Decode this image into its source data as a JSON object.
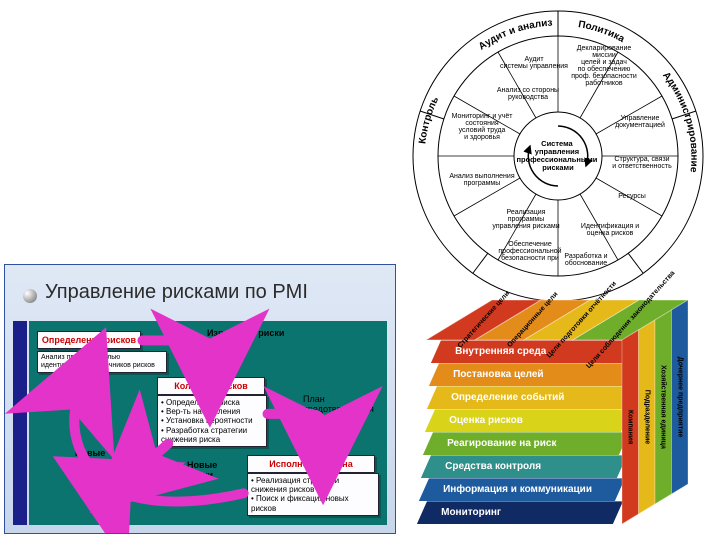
{
  "wheel": {
    "center": "Система управления профессиональными рисками",
    "sectors_outer": [
      "Аудит и анализ",
      "Политика",
      "Администрирование",
      "Контроль",
      "Контроль"
    ],
    "cells": [
      "Аудит системы управления",
      "Анализ со стороны руководства",
      "Мониторинг и учёт состояния условий труда и здоровья",
      "Анализ выполнения программы",
      "Декларирование миссии, целей и задач по обеспечению профессиональной безопасности работников",
      "Управление документацией",
      "Структура, связи и ответственность",
      "Ресурсы",
      "Идентификация и оценка рисков",
      "Разработка и обоснование",
      "Реализация программы управления рисками",
      "Обеспечение профессиональной безопасности при"
    ],
    "colors": {
      "stroke": "#000000",
      "fill": "#ffffff"
    }
  },
  "pmi": {
    "title": "Управление рисками по PMI",
    "bg_outer": "#d3e0f0",
    "bg_inner": "#0b746f",
    "accent": "#1a1f8a",
    "arrow_color": "#e333c8",
    "boxes": {
      "b1": {
        "title": "Определение рисков"
      },
      "b2": {
        "text": "Анализ проекта с целью идентификации источников рисков"
      },
      "b3": {
        "title": "Кол./Кач. рисков",
        "items": [
          "Определение риска",
          "Вер-ть наступления",
          "Установка вероятности",
          "Разработка стратегии снижения риска"
        ]
      },
      "b4": {
        "title": "Исполнение плана",
        "items": [
          "Реализация стратегии снижения рисков",
          "Поиск и фиксация новых рисков"
        ]
      }
    },
    "labels": {
      "known": "Известные риски",
      "new1": "Новые риски",
      "new2": "Новые риски",
      "plan": "План предотвращения риска"
    }
  },
  "cube": {
    "layers": [
      {
        "label": "Внутренняя среда",
        "color": "#d13a1f"
      },
      {
        "label": "Постановка целей",
        "color": "#e38c1a"
      },
      {
        "label": "Определение событий",
        "color": "#e5b91a"
      },
      {
        "label": "Оценка рисков",
        "color": "#d9d31a"
      },
      {
        "label": "Реагирование на риск",
        "color": "#6fae2a"
      },
      {
        "label": "Средства контроля",
        "color": "#2f8f8a"
      },
      {
        "label": "Информация и коммуникации",
        "color": "#1e5a9e"
      },
      {
        "label": "Мониторинг",
        "color": "#102a63"
      }
    ],
    "top_labels": [
      "Стратегические цели",
      "Операционные цели",
      "Цели подготовки отчётности",
      "Цели соблюдения законодательства"
    ],
    "top_colors": [
      "#d13a1f",
      "#e38c1a",
      "#e5b91a",
      "#6fae2a"
    ],
    "side_labels": [
      "Компания",
      "Подразделение",
      "Хозяйственная единица",
      "Дочернее предприятие"
    ],
    "side_colors": [
      "#d13a1f",
      "#e5b91a",
      "#6fae2a",
      "#1e5a9e"
    ]
  }
}
